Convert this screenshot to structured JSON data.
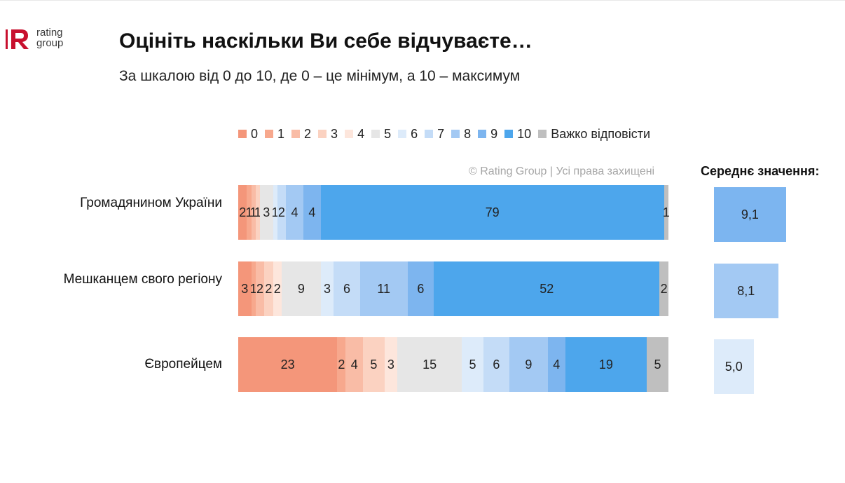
{
  "logo": {
    "word1": "rating",
    "word2": "group",
    "brand_color": "#c8102e"
  },
  "title": "Оцініть наскільки Ви себе відчуваєте…",
  "subtitle": "За шкалою від 0 до 10, де 0 – це мінімум, а 10 – максимум",
  "copyright": "© Rating Group | Усі права захищені",
  "mean_title": "Середнє значення:",
  "chart_data": {
    "type": "bar",
    "orientation": "horizontal",
    "stacked": true,
    "unit": "%",
    "legend_position": "top",
    "categories": [
      "Громадянином України",
      "Мешканцем свого регіону",
      "Європейцем"
    ],
    "series": [
      {
        "name": "0",
        "color": "#f4967a",
        "values": [
          2,
          3,
          23
        ]
      },
      {
        "name": "1",
        "color": "#f7a88d",
        "values": [
          1,
          1,
          2
        ]
      },
      {
        "name": "2",
        "color": "#f9bca6",
        "values": [
          1,
          2,
          4
        ]
      },
      {
        "name": "3",
        "color": "#fbd2c1",
        "values": [
          1,
          2,
          5
        ]
      },
      {
        "name": "4",
        "color": "#fde6dc",
        "values": [
          0,
          2,
          3
        ]
      },
      {
        "name": "5",
        "color": "#e6e6e6",
        "values": [
          3,
          9,
          15
        ]
      },
      {
        "name": "6",
        "color": "#ddebfa",
        "values": [
          1,
          3,
          5
        ]
      },
      {
        "name": "7",
        "color": "#c4dcf7",
        "values": [
          2,
          6,
          6
        ]
      },
      {
        "name": "8",
        "color": "#a3c9f3",
        "values": [
          4,
          11,
          9
        ]
      },
      {
        "name": "9",
        "color": "#7db5ef",
        "values": [
          4,
          6,
          4
        ]
      },
      {
        "name": "10",
        "color": "#4da6ec",
        "values": [
          79,
          52,
          19
        ]
      },
      {
        "name": "Важко відповісти",
        "color": "#bfbfbf",
        "values": [
          1,
          2,
          5
        ]
      }
    ],
    "mean": {
      "values": [
        9.1,
        8.1,
        5.0
      ],
      "labels": [
        "9,1",
        "8,1",
        "5,0"
      ],
      "colors": [
        "#7cb5f0",
        "#a3c9f3",
        "#ddebfa"
      ],
      "max": 10
    }
  }
}
